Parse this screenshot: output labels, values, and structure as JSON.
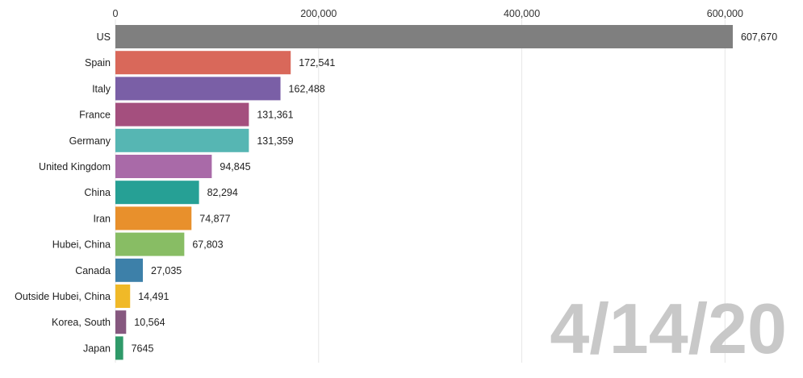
{
  "chart_data": {
    "type": "bar",
    "orientation": "horizontal",
    "categories": [
      "US",
      "Spain",
      "Italy",
      "France",
      "Germany",
      "United Kingdom",
      "China",
      "Iran",
      "Hubei, China",
      "Canada",
      "Outside Hubei, China",
      "Korea, South",
      "Japan"
    ],
    "values": [
      607670,
      172541,
      162488,
      131361,
      131359,
      94845,
      82294,
      74877,
      67803,
      27035,
      14491,
      10564,
      7645
    ],
    "value_labels": [
      "607,670",
      "172,541",
      "162,488",
      "131,361",
      "131,359",
      "94,845",
      "82,294",
      "74,877",
      "67,803",
      "27,035",
      "14,491",
      "10,564",
      "7645"
    ],
    "colors": [
      "#7f7f7f",
      "#d9685a",
      "#7a5fa6",
      "#a44f7e",
      "#56b6b3",
      "#a96aa8",
      "#26a095",
      "#e8902c",
      "#88bd64",
      "#3d80a9",
      "#f0b928",
      "#86587f",
      "#2f9a69"
    ],
    "x_ticks": [
      0,
      200000,
      400000,
      600000
    ],
    "x_tick_labels": [
      "0",
      "200,000",
      "400,000",
      "600,000"
    ],
    "xlim": [
      0,
      640000
    ],
    "grid": true,
    "axis_position": "top",
    "date_label": "4/14/20",
    "date_label_color": "#c8c8c8"
  }
}
